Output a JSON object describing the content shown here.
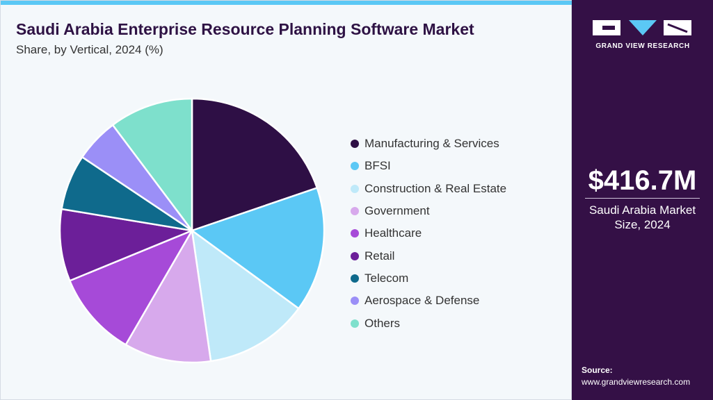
{
  "header": {
    "title": "Saudi Arabia Enterprise Resource Planning Software Market",
    "subtitle": "Share, by Vertical, 2024 (%)"
  },
  "chart_data": {
    "type": "pie",
    "title": "Saudi Arabia Enterprise Resource Planning Software Market",
    "subtitle": "Share, by Vertical, 2024 (%)",
    "legend_position": "right",
    "start_angle_deg": 0,
    "direction": "clockwise",
    "series": [
      {
        "name": "Manufacturing & Services",
        "value": 19.5,
        "color": "#2e0f45"
      },
      {
        "name": "BFSI",
        "value": 15.1,
        "color": "#5bc8f5"
      },
      {
        "name": "Construction & Real Estate",
        "value": 12.5,
        "color": "#bfe9f9"
      },
      {
        "name": "Government",
        "value": 10.5,
        "color": "#d7a9ec"
      },
      {
        "name": "Healthcare",
        "value": 10.3,
        "color": "#a64ad8"
      },
      {
        "name": "Retail",
        "value": 8.7,
        "color": "#6c1f99"
      },
      {
        "name": "Telecom",
        "value": 6.7,
        "color": "#0f6a8c"
      },
      {
        "name": "Aerospace & Defense",
        "value": 5.3,
        "color": "#9b8ff7"
      },
      {
        "name": "Others",
        "value": 10.1,
        "color": "#7ee0cc"
      }
    ]
  },
  "sidebar": {
    "brand": "GRAND VIEW RESEARCH",
    "stat_value": "$416.7M",
    "stat_label_line1": "Saudi Arabia Market",
    "stat_label_line2": "Size, 2024",
    "source_label": "Source:",
    "source_url": "www.grandviewresearch.com"
  },
  "colors": {
    "accent_bar": "#5bc8f5",
    "sidebar_bg": "#341046",
    "title": "#2e1244"
  }
}
